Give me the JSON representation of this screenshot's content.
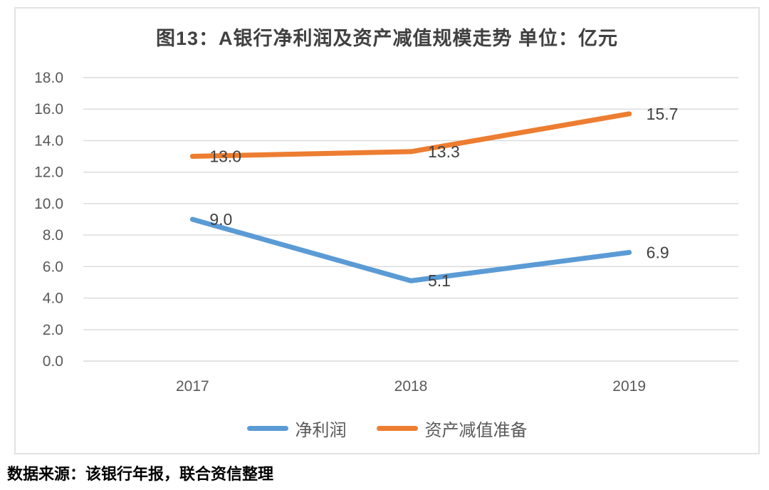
{
  "title": "图13：A银行净利润及资产减值规模走势 单位：亿元",
  "footer": "数据来源：该银行年报，联合资信整理",
  "colors": {
    "blue_series": "#5B9BD5",
    "orange_series": "#ED7D31",
    "gridline": "#D9D9D9",
    "box_border": "#E2E2E2",
    "axis_text": "#595959",
    "data_label_text": "#404040"
  },
  "chart_data": {
    "type": "line",
    "title": "图13：A银行净利润及资产减值规模走势 单位：亿元",
    "categories": [
      "2017",
      "2018",
      "2019"
    ],
    "series": [
      {
        "name": "净利润",
        "color": "#5B9BD5",
        "values": [
          9.0,
          5.1,
          6.9
        ],
        "labels": [
          "9.0",
          "5.1",
          "6.9"
        ]
      },
      {
        "name": "资产减值准备",
        "color": "#ED7D31",
        "values": [
          13.0,
          13.3,
          15.7
        ],
        "labels": [
          "13.0",
          "13.3",
          "15.7"
        ]
      }
    ],
    "xlabel": "",
    "ylabel": "",
    "ylim": [
      0,
      18
    ],
    "ytick_step": 2,
    "ytick_labels": [
      "0.0",
      "2.0",
      "4.0",
      "6.0",
      "8.0",
      "10.0",
      "12.0",
      "14.0",
      "16.0",
      "18.0"
    ],
    "grid": true,
    "legend_position": "bottom"
  }
}
